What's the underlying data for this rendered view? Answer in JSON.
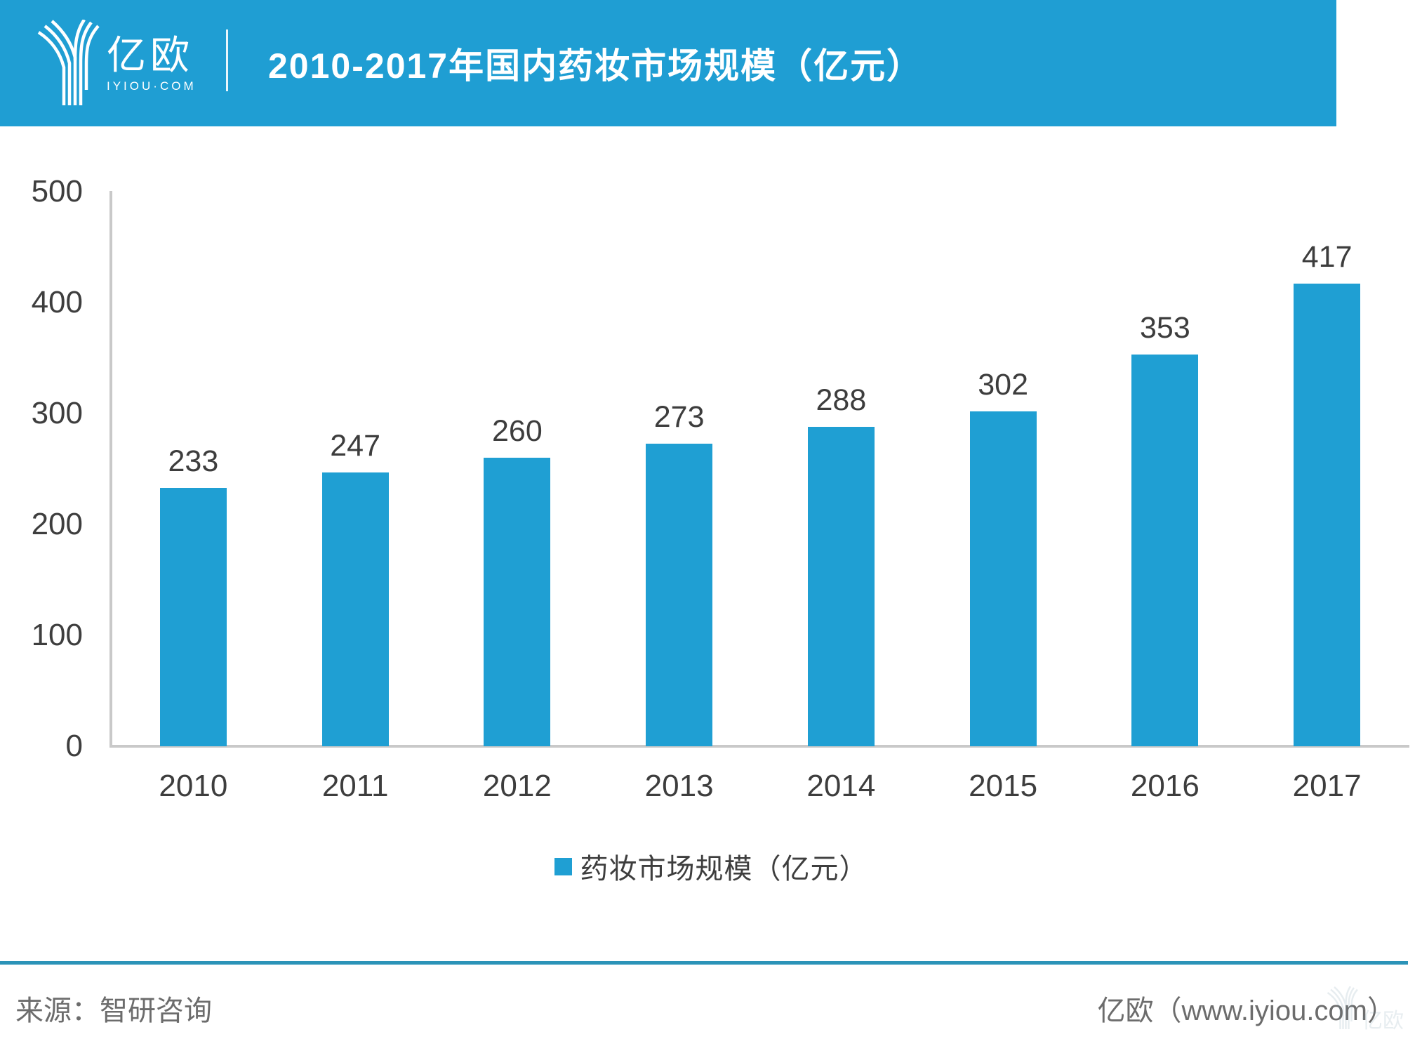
{
  "header": {
    "logo": {
      "brand": "亿欧",
      "domain": "IYIOU·COM"
    },
    "title": "2010-2017年国内药妆市场规模（亿元）",
    "bg_color": "#1f9ed3"
  },
  "chart_data": {
    "type": "bar",
    "title": "2010-2017年国内药妆市场规模（亿元）",
    "categories": [
      "2010",
      "2011",
      "2012",
      "2013",
      "2014",
      "2015",
      "2016",
      "2017"
    ],
    "values": [
      233,
      247,
      260,
      273,
      288,
      302,
      353,
      417
    ],
    "series_name": "药妆市场规模（亿元）",
    "xlabel": "",
    "ylabel": "",
    "ylim": [
      0,
      500
    ],
    "yticks": [
      0,
      100,
      200,
      300,
      400,
      500
    ],
    "grid": false,
    "legend_position": "bottom",
    "bar_color": "#1f9fd3",
    "axis_color": "#c9c9c9",
    "label_color": "#3d3d3d",
    "value_labels_shown": true
  },
  "legend": {
    "label": "药妆市场规模（亿元）",
    "swatch_color": "#1f9fd3"
  },
  "footer": {
    "source": "来源：智研咨询",
    "credit": "亿欧（www.iyiou.com）",
    "watermark_brand": "亿欧"
  }
}
